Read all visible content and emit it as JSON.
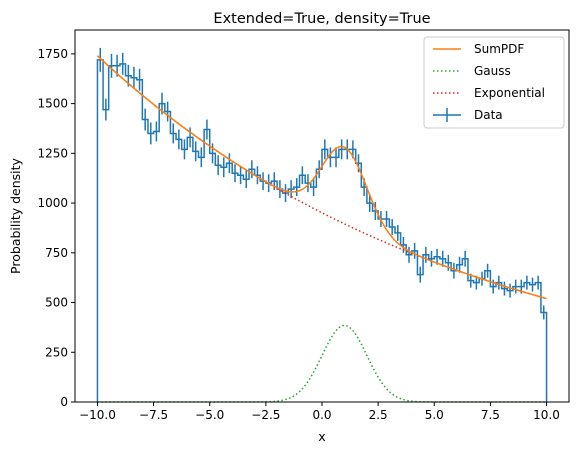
{
  "chart_data": {
    "type": "line",
    "title": "Extended=True, density=True",
    "xlabel": "x",
    "ylabel": "Probability density",
    "xlim": [
      -11.0,
      11.0
    ],
    "ylim": [
      0,
      1870
    ],
    "xticks": [
      -10.0,
      -7.5,
      -5.0,
      -2.5,
      0.0,
      2.5,
      5.0,
      7.5,
      10.0
    ],
    "xtick_labels": [
      "−10.0",
      "−7.5",
      "−5.0",
      "−2.5",
      "0.0",
      "2.5",
      "5.0",
      "7.5",
      "10.0"
    ],
    "yticks": [
      0,
      250,
      500,
      750,
      1000,
      1250,
      1500,
      1750
    ],
    "ytick_labels": [
      "0",
      "250",
      "500",
      "750",
      "1000",
      "1250",
      "1500",
      "1750"
    ],
    "legend_position": "top-right",
    "legend": [
      "SumPDF",
      "Gauss",
      "Exponential",
      "Data"
    ],
    "colors": {
      "SumPDF": "#ff7f0e",
      "Gauss": "#2ca02c",
      "Exponential": "#d62728",
      "Data": "#1f77b4"
    },
    "models": {
      "exponential": {
        "value_at_-10": 1740,
        "value_at_10": 520
      },
      "gauss": {
        "mean": 1.0,
        "sigma": 1.0,
        "peak": 385
      }
    },
    "data": {
      "bin_edges_x": [
        -10.0,
        10.0
      ],
      "n_bins": 80,
      "bin_width": 0.25,
      "values": [
        1720,
        1470,
        1690,
        1690,
        1700,
        1640,
        1630,
        1620,
        1420,
        1350,
        1360,
        1500,
        1460,
        1350,
        1320,
        1270,
        1330,
        1260,
        1230,
        1370,
        1250,
        1190,
        1180,
        1200,
        1150,
        1140,
        1120,
        1170,
        1140,
        1110,
        1100,
        1110,
        1070,
        1050,
        1070,
        1080,
        1140,
        1100,
        1080,
        1170,
        1270,
        1230,
        1230,
        1270,
        1270,
        1270,
        1200,
        1080,
        1000,
        960,
        920,
        920,
        880,
        850,
        790,
        740,
        760,
        640,
        740,
        720,
        730,
        720,
        700,
        660,
        690,
        720,
        610,
        600,
        620,
        660,
        580,
        600,
        570,
        560,
        580,
        580,
        600,
        590,
        600,
        450
      ],
      "errors": [
        60,
        55,
        60,
        55,
        55,
        55,
        55,
        55,
        55,
        55,
        50,
        55,
        50,
        50,
        50,
        50,
        50,
        50,
        50,
        50,
        50,
        50,
        50,
        50,
        45,
        45,
        45,
        45,
        45,
        45,
        45,
        45,
        45,
        45,
        45,
        45,
        45,
        45,
        45,
        45,
        50,
        50,
        50,
        50,
        50,
        45,
        45,
        45,
        45,
        45,
        40,
        40,
        40,
        40,
        40,
        40,
        40,
        40,
        40,
        40,
        40,
        40,
        40,
        40,
        40,
        40,
        35,
        35,
        35,
        35,
        35,
        35,
        35,
        35,
        35,
        35,
        35,
        35,
        35,
        35
      ]
    }
  }
}
